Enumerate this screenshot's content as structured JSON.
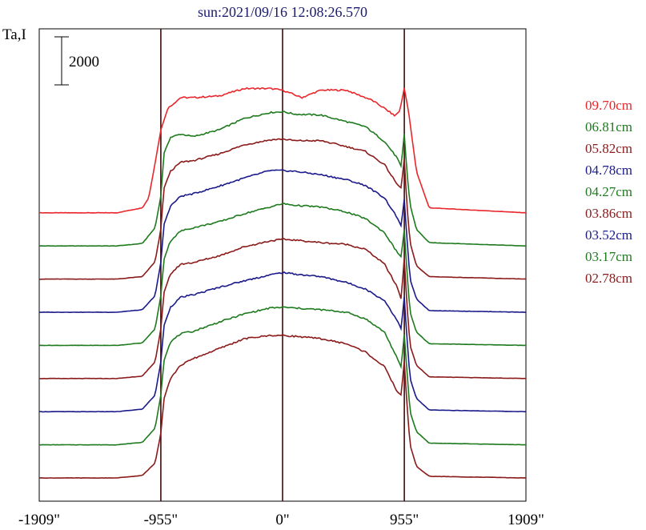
{
  "chart_data": {
    "type": "line",
    "title": "sun:2021/09/16 12:08:26.570",
    "ylabel": "Ta,I",
    "scale_bar": {
      "label": "2000",
      "value": 2000
    },
    "x_ticks": [
      {
        "label": "-1909\"",
        "value": -1909
      },
      {
        "label": "-955\"",
        "value": -955
      },
      {
        "label": "0\"",
        "value": 0
      },
      {
        "label": "955\"",
        "value": 955
      },
      {
        "label": "1909\"",
        "value": 1909
      }
    ],
    "xlim": [
      -1909,
      1909
    ],
    "vertical_lines": [
      -955,
      0,
      955
    ],
    "grid": false,
    "series_offset_step": 2000,
    "legend_position": "right",
    "series": [
      {
        "name": "09.70cm",
        "color": "#e8262b",
        "baseline": 16000,
        "profile": {
          "x": [
            -1909,
            -1300,
            -1100,
            -1050,
            -1000,
            -955,
            -900,
            -800,
            -700,
            -500,
            -300,
            -100,
            0,
            150,
            300,
            500,
            700,
            800,
            880,
            920,
            955,
            990,
            1050,
            1150,
            1909
          ],
          "y": [
            0,
            0,
            300,
            900,
            3000,
            5000,
            6300,
            6950,
            6950,
            7050,
            7500,
            7500,
            7400,
            6950,
            7400,
            7400,
            6800,
            6300,
            5850,
            6150,
            7550,
            6000,
            2500,
            300,
            0
          ]
        }
      },
      {
        "name": "06.81cm",
        "color": "#1e7a1e",
        "baseline": 14000,
        "profile": {
          "x": [
            -1909,
            -1300,
            -1100,
            -1000,
            -955,
            -930,
            -880,
            -800,
            -700,
            -500,
            -300,
            -100,
            0,
            100,
            300,
            500,
            650,
            800,
            900,
            930,
            955,
            975,
            1000,
            1050,
            1150,
            1909
          ],
          "y": [
            0,
            0,
            150,
            1100,
            3000,
            5600,
            6550,
            6750,
            6600,
            7000,
            7700,
            8050,
            8100,
            7950,
            7900,
            7500,
            7200,
            6300,
            5300,
            4800,
            6800,
            4500,
            2500,
            1000,
            200,
            0
          ]
        }
      },
      {
        "name": "05.82cm",
        "color": "#8b1a1a",
        "baseline": 12000,
        "profile": {
          "x": [
            -1909,
            -1300,
            -1100,
            -1000,
            -955,
            -930,
            -880,
            -800,
            -700,
            -500,
            -300,
            -100,
            0,
            100,
            300,
            500,
            650,
            800,
            900,
            930,
            955,
            975,
            1000,
            1050,
            1150,
            1909
          ],
          "y": [
            0,
            0,
            150,
            1050,
            3000,
            5500,
            6500,
            7050,
            7150,
            7550,
            8100,
            8400,
            8450,
            8350,
            8350,
            8000,
            7700,
            6900,
            5700,
            5500,
            7300,
            4500,
            2200,
            800,
            150,
            0
          ]
        }
      },
      {
        "name": "04.78cm",
        "color": "#1a1a8b",
        "baseline": 10000,
        "profile": {
          "x": [
            -1909,
            -1300,
            -1100,
            -1000,
            -955,
            -930,
            -880,
            -800,
            -700,
            -500,
            -300,
            -100,
            0,
            100,
            300,
            500,
            650,
            800,
            900,
            930,
            955,
            975,
            1000,
            1050,
            1150,
            1909
          ],
          "y": [
            0,
            0,
            150,
            1000,
            3000,
            5300,
            6400,
            7000,
            7150,
            7600,
            8100,
            8550,
            8550,
            8500,
            8300,
            8000,
            7650,
            6900,
            5700,
            5200,
            6850,
            4500,
            2000,
            800,
            100,
            0
          ]
        }
      },
      {
        "name": "04.27cm",
        "color": "#1e7a1e",
        "baseline": 8000,
        "profile": {
          "x": [
            -1909,
            -1300,
            -1100,
            -1000,
            -955,
            -930,
            -880,
            -800,
            -700,
            -500,
            -300,
            -100,
            0,
            100,
            300,
            500,
            650,
            800,
            900,
            930,
            955,
            975,
            1000,
            1050,
            1150,
            1909
          ],
          "y": [
            0,
            0,
            150,
            1000,
            3000,
            5200,
            6300,
            6900,
            7100,
            7450,
            7950,
            8350,
            8550,
            8450,
            8350,
            8050,
            7650,
            6800,
            5600,
            5350,
            7000,
            4500,
            2000,
            800,
            100,
            0
          ]
        }
      },
      {
        "name": "03.86cm",
        "color": "#8b1a1a",
        "baseline": 6000,
        "profile": {
          "x": [
            -1909,
            -1300,
            -1100,
            -1000,
            -955,
            -930,
            -880,
            -800,
            -700,
            -500,
            -300,
            -100,
            0,
            100,
            300,
            500,
            650,
            800,
            900,
            930,
            955,
            975,
            1000,
            1050,
            1150,
            1909
          ],
          "y": [
            0,
            0,
            150,
            1000,
            3000,
            5200,
            6300,
            6900,
            7000,
            7400,
            7950,
            8300,
            8400,
            8350,
            8200,
            8100,
            7800,
            6900,
            5500,
            4800,
            7300,
            4500,
            2000,
            800,
            100,
            0
          ]
        }
      },
      {
        "name": "03.52cm",
        "color": "#1a1a8b",
        "baseline": 4000,
        "profile": {
          "x": [
            -1909,
            -1300,
            -1100,
            -1000,
            -955,
            -930,
            -880,
            -800,
            -700,
            -500,
            -300,
            -100,
            0,
            100,
            300,
            500,
            650,
            800,
            900,
            930,
            955,
            975,
            1000,
            1050,
            1150,
            1909
          ],
          "y": [
            0,
            0,
            150,
            1000,
            3000,
            5200,
            6300,
            6900,
            7050,
            7500,
            7900,
            8250,
            8400,
            8300,
            8150,
            7800,
            7400,
            6700,
            5500,
            5000,
            6950,
            4500,
            2000,
            800,
            100,
            0
          ]
        }
      },
      {
        "name": "03.17cm",
        "color": "#1e7a1e",
        "baseline": 2000,
        "profile": {
          "x": [
            -1909,
            -1300,
            -1100,
            -1000,
            -955,
            -930,
            -880,
            -800,
            -700,
            -500,
            -300,
            -100,
            0,
            100,
            300,
            500,
            650,
            800,
            900,
            930,
            955,
            975,
            1000,
            1050,
            1150,
            1909
          ],
          "y": [
            0,
            0,
            150,
            1000,
            3000,
            5100,
            6200,
            6700,
            6850,
            7400,
            7900,
            8250,
            8300,
            8250,
            8150,
            8000,
            7600,
            6800,
            5200,
            4700,
            6700,
            4500,
            2000,
            800,
            100,
            0
          ]
        }
      },
      {
        "name": "02.78cm",
        "color": "#8b1a1a",
        "baseline": 0,
        "profile": {
          "x": [
            -1909,
            -1300,
            -1100,
            -1000,
            -955,
            -930,
            -880,
            -800,
            -700,
            -500,
            -300,
            -100,
            0,
            100,
            300,
            500,
            650,
            800,
            900,
            930,
            955,
            975,
            1000,
            1050,
            1150,
            1909
          ],
          "y": [
            0,
            0,
            150,
            900,
            2700,
            4800,
            6000,
            6800,
            7200,
            7800,
            8400,
            8600,
            8600,
            8550,
            8400,
            8100,
            7600,
            6700,
            5200,
            5000,
            7100,
            4500,
            2000,
            700,
            100,
            0
          ]
        }
      }
    ]
  }
}
